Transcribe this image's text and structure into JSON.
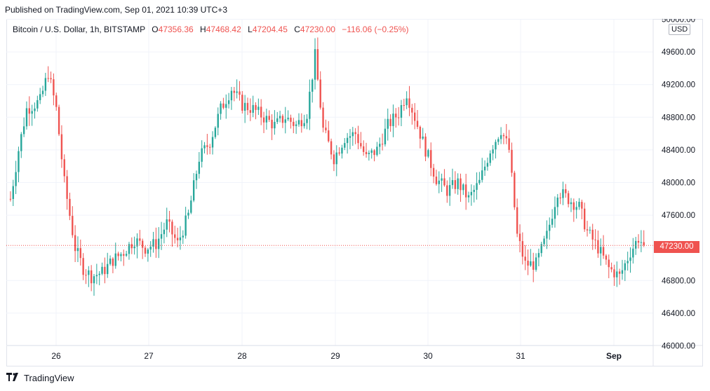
{
  "published": "Published on TradingView.com, Sep 01, 2021 10:39 UTC+3",
  "legend": {
    "symbol": "Bitcoin / U.S. Dollar, 1h, BITSTAMP",
    "o_label": "O",
    "o_value": "47356.36",
    "h_label": "H",
    "h_value": "47468.42",
    "l_label": "L",
    "l_value": "47204.45",
    "c_label": "C",
    "c_value": "47230.00",
    "change": "−116.06 (−0.25%)"
  },
  "currency_badge": "USD",
  "last_price_label": "47230.00",
  "footer": {
    "logo_icon": "tradingview-logo-icon",
    "brand": "TradingView"
  },
  "colors": {
    "up": "#26a69a",
    "down": "#ef5350",
    "grid": "#f0f3fa",
    "text": "#131722"
  },
  "chart_data": {
    "type": "candlestick",
    "title": "Bitcoin / U.S. Dollar, 1h, BITSTAMP",
    "y_axis": {
      "ticks": [
        46000,
        46400,
        46800,
        47200,
        47600,
        48000,
        48400,
        48800,
        49200,
        49600,
        50000
      ],
      "tick_labels": [
        "46000.00",
        "46400.00",
        "46800.00",
        "47200.00",
        "47600.00",
        "48000.00",
        "48400.00",
        "48800.00",
        "49200.00",
        "49600.00",
        "50000.00"
      ],
      "range": [
        46000,
        50000
      ]
    },
    "x_axis": {
      "tick_labels": [
        "26",
        "27",
        "28",
        "29",
        "30",
        "31",
        "Sep"
      ]
    },
    "last_price": 47230.0,
    "grid": true,
    "anchors": [
      [
        0,
        47800
      ],
      [
        3,
        48400
      ],
      [
        6,
        48900
      ],
      [
        11,
        49000
      ],
      [
        14,
        49350
      ],
      [
        17,
        48900
      ],
      [
        20,
        48000
      ],
      [
        24,
        47200
      ],
      [
        27,
        46950
      ],
      [
        30,
        46850
      ],
      [
        34,
        46900
      ],
      [
        38,
        47050
      ],
      [
        42,
        47150
      ],
      [
        46,
        47300
      ],
      [
        50,
        47200
      ],
      [
        54,
        47250
      ],
      [
        58,
        47500
      ],
      [
        62,
        47250
      ],
      [
        66,
        47600
      ],
      [
        70,
        48300
      ],
      [
        74,
        48500
      ],
      [
        78,
        48900
      ],
      [
        82,
        49150
      ],
      [
        86,
        48950
      ],
      [
        90,
        48900
      ],
      [
        94,
        48800
      ],
      [
        98,
        48700
      ],
      [
        102,
        48800
      ],
      [
        106,
        48700
      ],
      [
        110,
        48850
      ],
      [
        113,
        49550
      ],
      [
        116,
        48650
      ],
      [
        120,
        48300
      ],
      [
        124,
        48550
      ],
      [
        128,
        48600
      ],
      [
        132,
        48300
      ],
      [
        136,
        48400
      ],
      [
        140,
        48700
      ],
      [
        144,
        48850
      ],
      [
        147,
        49100
      ],
      [
        150,
        48800
      ],
      [
        154,
        48400
      ],
      [
        158,
        48050
      ],
      [
        162,
        47900
      ],
      [
        166,
        48000
      ],
      [
        170,
        47800
      ],
      [
        174,
        48000
      ],
      [
        178,
        48400
      ],
      [
        182,
        48650
      ],
      [
        185,
        48400
      ],
      [
        188,
        47350
      ],
      [
        191,
        47000
      ],
      [
        195,
        47000
      ],
      [
        199,
        47350
      ],
      [
        203,
        47900
      ],
      [
        207,
        47800
      ],
      [
        211,
        47700
      ],
      [
        214,
        47400
      ],
      [
        218,
        47200
      ],
      [
        222,
        46950
      ],
      [
        226,
        46850
      ],
      [
        230,
        47150
      ],
      [
        233,
        47320
      ],
      [
        235,
        47230
      ]
    ]
  }
}
